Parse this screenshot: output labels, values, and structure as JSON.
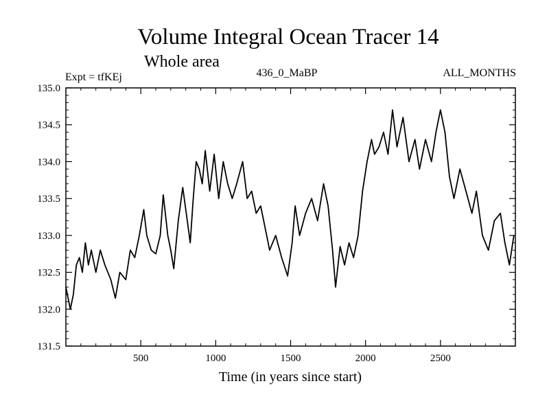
{
  "chart_data": {
    "type": "line",
    "title": "Volume Integral Ocean Tracer 14",
    "subtitle": "Whole area",
    "header_left": "Expt = tfKEj",
    "header_center": "436_0_MaBP",
    "header_right": "ALL_MONTHS",
    "xlabel": "Time (in years since start)",
    "ylabel": "",
    "xlim": [
      0,
      3000
    ],
    "ylim": [
      131.5,
      135.0
    ],
    "xticks": [
      500,
      1000,
      1500,
      2000,
      2500
    ],
    "yticks": [
      131.5,
      132.0,
      132.5,
      133.0,
      133.5,
      134.0,
      134.5,
      135.0
    ],
    "series": [
      {
        "color": "#000000",
        "x": [
          0,
          30,
          50,
          70,
          90,
          110,
          130,
          150,
          170,
          200,
          230,
          260,
          300,
          330,
          360,
          400,
          430,
          460,
          490,
          520,
          540,
          570,
          600,
          630,
          650,
          680,
          700,
          720,
          750,
          780,
          810,
          830,
          850,
          870,
          890,
          910,
          930,
          960,
          990,
          1020,
          1050,
          1080,
          1110,
          1140,
          1180,
          1210,
          1240,
          1270,
          1300,
          1330,
          1360,
          1400,
          1440,
          1480,
          1510,
          1530,
          1560,
          1600,
          1640,
          1680,
          1720,
          1750,
          1780,
          1800,
          1830,
          1860,
          1890,
          1920,
          1950,
          1980,
          2010,
          2040,
          2060,
          2090,
          2120,
          2150,
          2180,
          2210,
          2250,
          2290,
          2330,
          2360,
          2400,
          2440,
          2470,
          2500,
          2530,
          2560,
          2590,
          2630,
          2670,
          2710,
          2740,
          2780,
          2820,
          2860,
          2900,
          2930,
          2960,
          2990
        ],
        "values": [
          132.3,
          132.0,
          132.2,
          132.6,
          132.7,
          132.5,
          132.9,
          132.6,
          132.8,
          132.5,
          132.8,
          132.6,
          132.4,
          132.15,
          132.5,
          132.4,
          132.8,
          132.7,
          133.0,
          133.35,
          133.0,
          132.8,
          132.75,
          133.0,
          133.55,
          133.0,
          132.8,
          132.55,
          133.2,
          133.65,
          133.2,
          132.9,
          133.5,
          134.0,
          133.9,
          133.7,
          134.15,
          133.6,
          134.1,
          133.5,
          134.0,
          133.7,
          133.5,
          133.7,
          134.0,
          133.5,
          133.6,
          133.3,
          133.4,
          133.1,
          132.8,
          133.0,
          132.7,
          132.45,
          132.9,
          133.4,
          133.0,
          133.3,
          133.5,
          133.2,
          133.7,
          133.4,
          132.8,
          132.3,
          132.85,
          132.6,
          132.9,
          132.7,
          133.0,
          133.6,
          134.0,
          134.3,
          134.1,
          134.2,
          134.4,
          134.1,
          134.7,
          134.2,
          134.6,
          134.0,
          134.3,
          133.9,
          134.3,
          134.0,
          134.4,
          134.7,
          134.4,
          133.8,
          133.5,
          133.9,
          133.6,
          133.3,
          133.6,
          133.0,
          132.8,
          133.2,
          133.3,
          132.9,
          132.6,
          133.0
        ]
      }
    ],
    "grid": false,
    "legend": "none"
  }
}
